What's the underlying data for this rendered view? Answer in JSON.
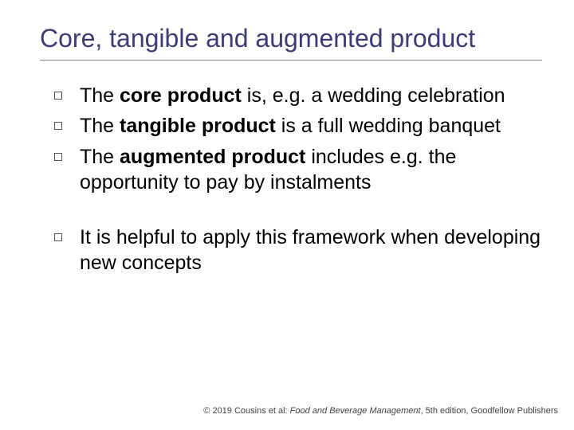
{
  "title_color": "#3b3b78",
  "body_color": "#000000",
  "background_color": "#ffffff",
  "rule_color": "#888888",
  "title_fontsize": 32,
  "body_fontsize": 25,
  "footer_fontsize": 11,
  "title": "Core, tangible and augmented product",
  "bullets": {
    "b0": {
      "pre": "The ",
      "bold": "core product",
      "post": " is, e.g. a wedding celebration"
    },
    "b1": {
      "pre": "The ",
      "bold": "tangible product",
      "post": " is a full wedding banquet"
    },
    "b2": {
      "pre": "The ",
      "bold": "augmented product",
      "post": " includes e.g. the opportunity to pay by instalments"
    },
    "b3": {
      "text": "It is helpful to apply this framework when developing new concepts"
    }
  },
  "footer": {
    "prefix": "© 2019 Cousins et al: ",
    "italic": "Food and Beverage Management",
    "suffix": ", 5th edition, Goodfellow Publishers"
  }
}
